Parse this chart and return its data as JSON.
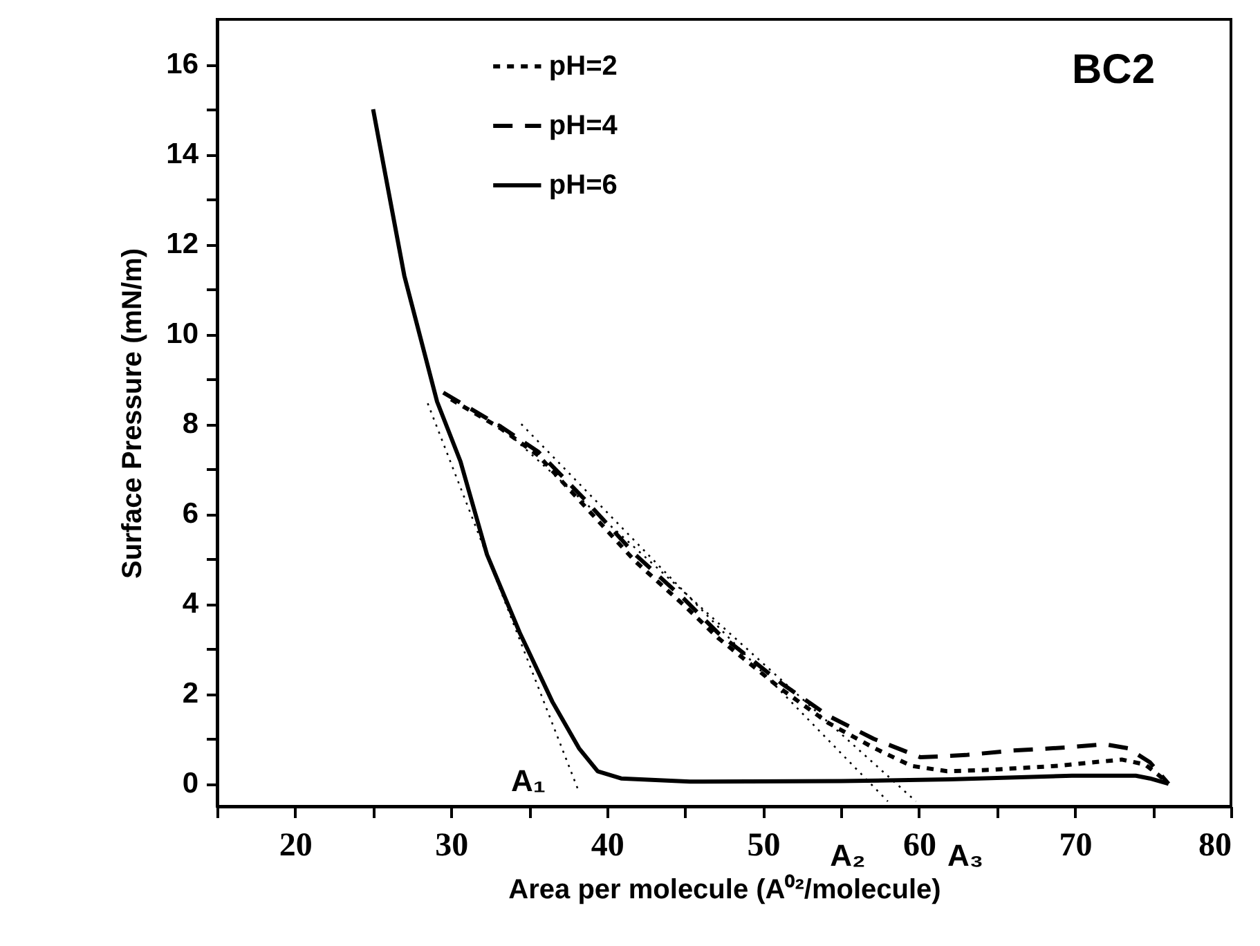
{
  "chart_data": {
    "type": "line",
    "title": "BC2",
    "xlabel": "Area per molecule (A⁰²/molecule)",
    "ylabel": "Surface Pressure (mN/m)",
    "xlim": [
      15,
      80
    ],
    "xticks": [
      {
        "value": 15,
        "label": null
      },
      20,
      {
        "value": 25,
        "label": null
      },
      30,
      {
        "value": 35,
        "label": null
      },
      40,
      {
        "value": 45,
        "label": null
      },
      50,
      {
        "value": 55,
        "label": null
      },
      60,
      {
        "value": 65,
        "label": null
      },
      70,
      {
        "value": 75,
        "label": null
      },
      80
    ],
    "ylim": [
      -0.5,
      17
    ],
    "yticks": [
      0,
      {
        "value": 1,
        "label": null
      },
      2,
      {
        "value": 3,
        "label": null
      },
      4,
      {
        "value": 5,
        "label": null
      },
      6,
      {
        "value": 7,
        "label": null
      },
      8,
      {
        "value": 9,
        "label": null
      },
      10,
      {
        "value": 11,
        "label": null
      },
      12,
      {
        "value": 13,
        "label": null
      },
      14,
      {
        "value": 15,
        "label": null
      },
      16
    ],
    "grid": false,
    "legend": "top",
    "series": [
      {
        "name": "pH=2",
        "color": "#000000",
        "line_style": "dotted",
        "x": [
          30.0,
          33.2,
          35.6,
          38.5,
          41.8,
          45.0,
          47.1,
          51.2,
          54.2,
          57.1,
          59.5,
          61.8,
          64.5,
          68.9,
          73.0,
          74.5,
          75.7
        ],
        "values": [
          8.55,
          7.9,
          7.3,
          6.2,
          4.95,
          3.95,
          3.25,
          2.1,
          1.35,
          0.8,
          0.4,
          0.28,
          0.31,
          0.4,
          0.54,
          0.43,
          0.1
        ]
      },
      {
        "name": "pH=4",
        "color": "#000000",
        "line_style": "dashed",
        "x": [
          29.5,
          33.2,
          35.6,
          38.5,
          41.8,
          45.0,
          47.1,
          51.2,
          54.2,
          57.1,
          60.1,
          63.0,
          66.0,
          69.5,
          71.9,
          73.4,
          74.8,
          76.0
        ],
        "values": [
          8.7,
          7.94,
          7.38,
          6.35,
          5.1,
          4.09,
          3.36,
          2.23,
          1.51,
          1.0,
          0.59,
          0.64,
          0.74,
          0.81,
          0.88,
          0.79,
          0.48,
          0.0
        ]
      },
      {
        "name": "pH=6",
        "color": "#000000",
        "line_style": "solid",
        "x": [
          25.0,
          27.0,
          29.1,
          30.6,
          32.3,
          34.4,
          36.5,
          38.2,
          39.4,
          40.9,
          45.3,
          55.0,
          62.0,
          69.8,
          73.9,
          74.8,
          76.0
        ],
        "values": [
          15.0,
          11.3,
          8.5,
          7.17,
          5.1,
          3.36,
          1.82,
          0.79,
          0.28,
          0.12,
          0.05,
          0.06,
          0.1,
          0.18,
          0.18,
          0.12,
          0.0
        ]
      },
      {
        "color": "#000000",
        "line_style": "dotted",
        "x": [
          28.5,
          38.2
        ],
        "values": [
          8.46,
          -0.18
        ]
      },
      {
        "color": "#000000",
        "line_style": "dotted",
        "x": [
          34.5,
          58.0
        ],
        "values": [
          8.0,
          -0.39
        ]
      },
      {
        "color": "#000000",
        "line_style": "dotted",
        "x": [
          33.0,
          59.8
        ],
        "values": [
          8.0,
          -0.39
        ]
      }
    ],
    "annotations": [
      "A₁",
      "A₂",
      "A₃"
    ]
  }
}
